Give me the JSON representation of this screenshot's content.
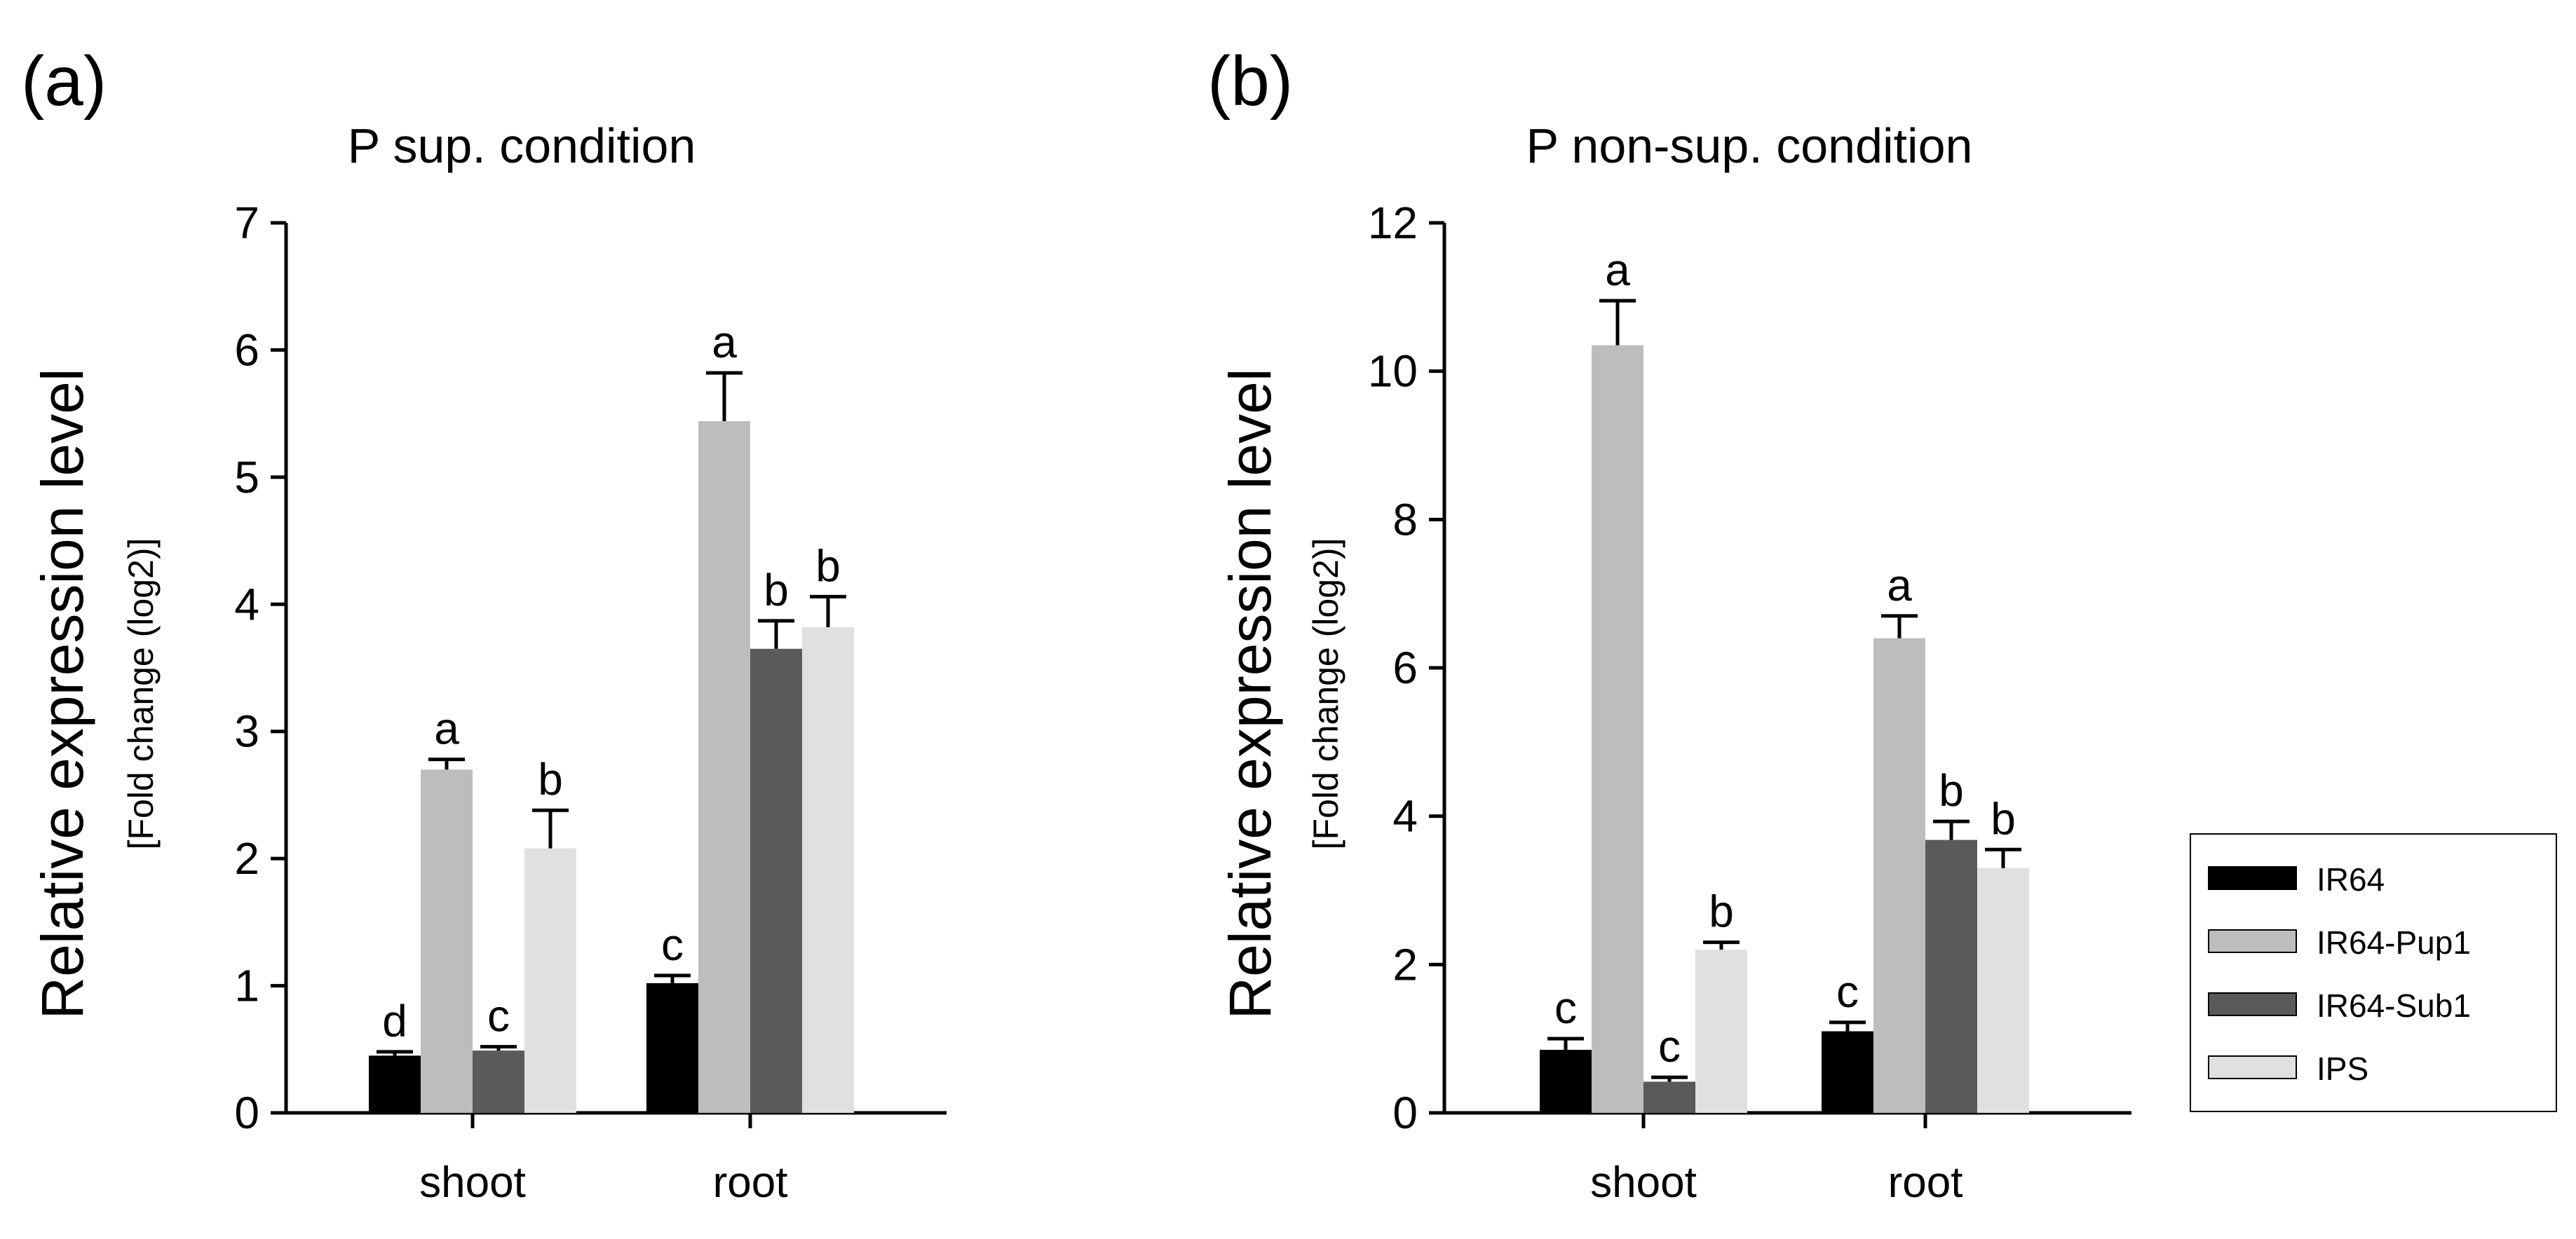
{
  "chart_data": [
    {
      "panel": "(a)",
      "type": "bar",
      "title": "P sup. condition",
      "ylabel": "Relative expression level",
      "ylabel_sub": "[Fold change (log2)]",
      "xlabel": "",
      "ylim": [
        0,
        7
      ],
      "yticks": [
        0,
        1,
        2,
        3,
        4,
        5,
        6,
        7
      ],
      "categories": [
        "shoot",
        "root"
      ],
      "series": [
        {
          "name": "IR64",
          "color": "#000000",
          "values": [
            0.45,
            1.02
          ],
          "errors": [
            0.03,
            0.06
          ],
          "letters": [
            "d",
            "c"
          ]
        },
        {
          "name": "IR64-Pup1",
          "color": "#bdbdbd",
          "values": [
            2.7,
            5.44
          ],
          "errors": [
            0.08,
            0.38
          ],
          "letters": [
            "a",
            "a"
          ]
        },
        {
          "name": "IR64-Sub1",
          "color": "#5a5a5a",
          "values": [
            0.49,
            3.65
          ],
          "errors": [
            0.03,
            0.22
          ],
          "letters": [
            "c",
            "b"
          ]
        },
        {
          "name": "IPS",
          "color": "#e0e0e0",
          "values": [
            2.08,
            3.82
          ],
          "errors": [
            0.3,
            0.24
          ],
          "letters": [
            "b",
            "b"
          ]
        }
      ]
    },
    {
      "panel": "(b)",
      "type": "bar",
      "title": "P non-sup. condition",
      "ylabel": "Relative expression level",
      "ylabel_sub": "[Fold change (log2)]",
      "xlabel": "",
      "ylim": [
        0,
        12
      ],
      "yticks": [
        0,
        2,
        4,
        6,
        8,
        10,
        12
      ],
      "categories": [
        "shoot",
        "root"
      ],
      "series": [
        {
          "name": "IR64",
          "color": "#000000",
          "values": [
            0.85,
            1.1
          ],
          "errors": [
            0.15,
            0.12
          ],
          "letters": [
            "c",
            "c"
          ]
        },
        {
          "name": "IR64-Pup1",
          "color": "#bdbdbd",
          "values": [
            10.35,
            6.4
          ],
          "errors": [
            0.6,
            0.3
          ],
          "letters": [
            "a",
            "a"
          ]
        },
        {
          "name": "IR64-Sub1",
          "color": "#5a5a5a",
          "values": [
            0.42,
            3.68
          ],
          "errors": [
            0.06,
            0.25
          ],
          "letters": [
            "c",
            "b"
          ]
        },
        {
          "name": "IPS",
          "color": "#e0e0e0",
          "values": [
            2.2,
            3.3
          ],
          "errors": [
            0.1,
            0.25
          ],
          "letters": [
            "b",
            "b"
          ]
        }
      ]
    }
  ],
  "legend": {
    "items": [
      {
        "label": "IR64",
        "color": "#000000"
      },
      {
        "label": "IR64-Pup1",
        "color": "#bdbdbd"
      },
      {
        "label": "IR64-Sub1",
        "color": "#5a5a5a"
      },
      {
        "label": "IPS",
        "color": "#e0e0e0"
      }
    ]
  }
}
